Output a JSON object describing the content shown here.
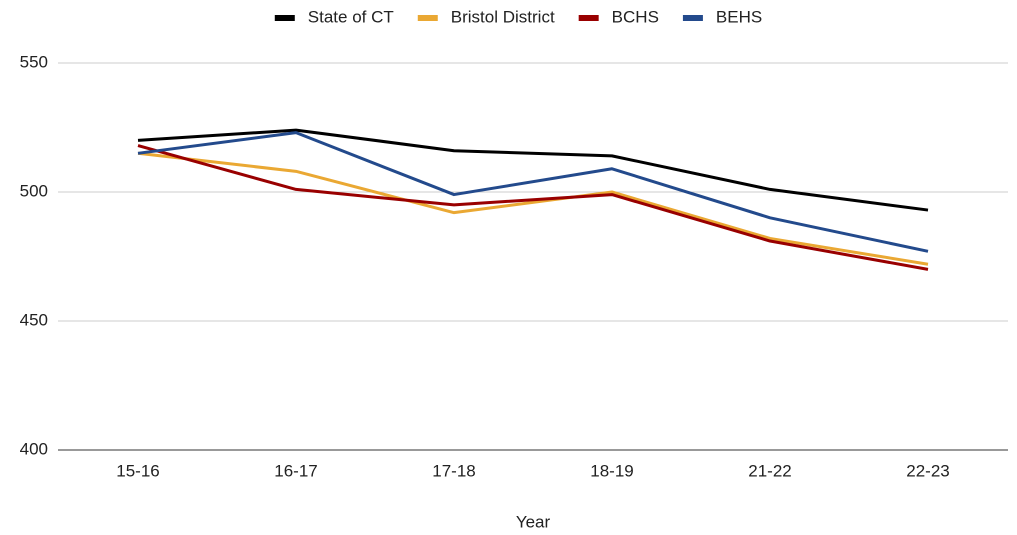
{
  "chart_data": {
    "type": "line",
    "x_label": "Year",
    "categories": [
      "15-16",
      "16-17",
      "17-18",
      "18-19",
      "21-22",
      "22-23"
    ],
    "series": [
      {
        "name": "State of CT",
        "color": "#000000",
        "values": [
          520,
          524,
          516,
          514,
          501,
          493
        ]
      },
      {
        "name": "Bristol District",
        "color": "#eaa833",
        "values": [
          515,
          508,
          492,
          500,
          482,
          472
        ]
      },
      {
        "name": "BCHS",
        "color": "#990000",
        "values": [
          518,
          501,
          495,
          499,
          481,
          470
        ]
      },
      {
        "name": "BEHS",
        "color": "#234a8c",
        "values": [
          515,
          523,
          499,
          509,
          490,
          477
        ]
      }
    ],
    "ylim": [
      400,
      550
    ],
    "yticks": [
      400,
      450,
      500,
      550
    ],
    "grid": true,
    "legend": "top"
  }
}
